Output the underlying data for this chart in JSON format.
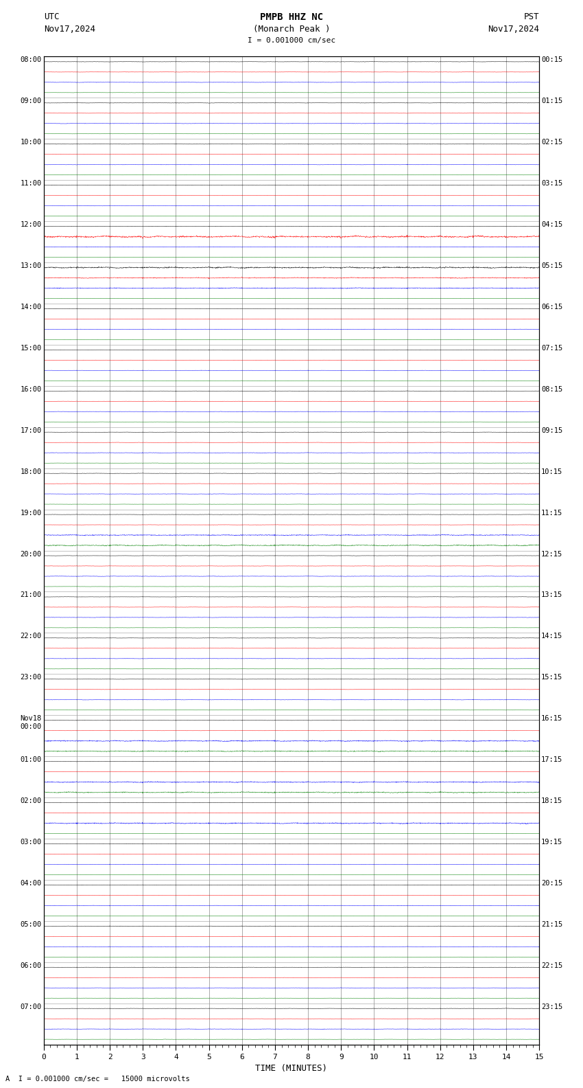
{
  "title_line1": "PMPB HHZ NC",
  "title_line2": "(Monarch Peak )",
  "scale_label": "I = 0.001000 cm/sec",
  "left_header": "UTC",
  "left_date": "Nov17,2024",
  "right_header": "PST",
  "right_date": "Nov17,2024",
  "bottom_annotation": "A  I = 0.001000 cm/sec =   15000 microvolts",
  "xlabel": "TIME (MINUTES)",
  "xlim": [
    0,
    15
  ],
  "xticks": [
    0,
    1,
    2,
    3,
    4,
    5,
    6,
    7,
    8,
    9,
    10,
    11,
    12,
    13,
    14,
    15
  ],
  "traces_per_hour": 4,
  "trace_colors": [
    "black",
    "red",
    "blue",
    "green"
  ],
  "left_times": [
    "08:00",
    "09:00",
    "10:00",
    "11:00",
    "12:00",
    "13:00",
    "14:00",
    "15:00",
    "16:00",
    "17:00",
    "18:00",
    "19:00",
    "20:00",
    "21:00",
    "22:00",
    "23:00",
    "Nov18\n00:00",
    "01:00",
    "02:00",
    "03:00",
    "04:00",
    "05:00",
    "06:00",
    "07:00"
  ],
  "right_times": [
    "00:15",
    "01:15",
    "02:15",
    "03:15",
    "04:15",
    "05:15",
    "06:15",
    "07:15",
    "08:15",
    "09:15",
    "10:15",
    "11:15",
    "12:15",
    "13:15",
    "14:15",
    "15:15",
    "16:15",
    "17:15",
    "18:15",
    "19:15",
    "20:15",
    "21:15",
    "22:15",
    "23:15"
  ],
  "bg_color": "#ffffff",
  "grid_color": "#888888",
  "font_family": "monospace",
  "fig_width": 8.5,
  "fig_height": 15.84,
  "dpi": 100,
  "trace_amplitude_black": 0.06,
  "trace_amplitude_red": 0.045,
  "trace_amplitude_blue": 0.07,
  "trace_amplitude_green": 0.035,
  "special_amplitudes": {
    "4_1": 0.35,
    "5_0": 0.25,
    "5_1": 0.18,
    "5_2": 0.15,
    "11_2": 0.18,
    "11_3": 0.18,
    "16_2": 0.2,
    "16_3": 0.18,
    "17_2": 0.2,
    "17_3": 0.2,
    "18_2": 0.2
  }
}
